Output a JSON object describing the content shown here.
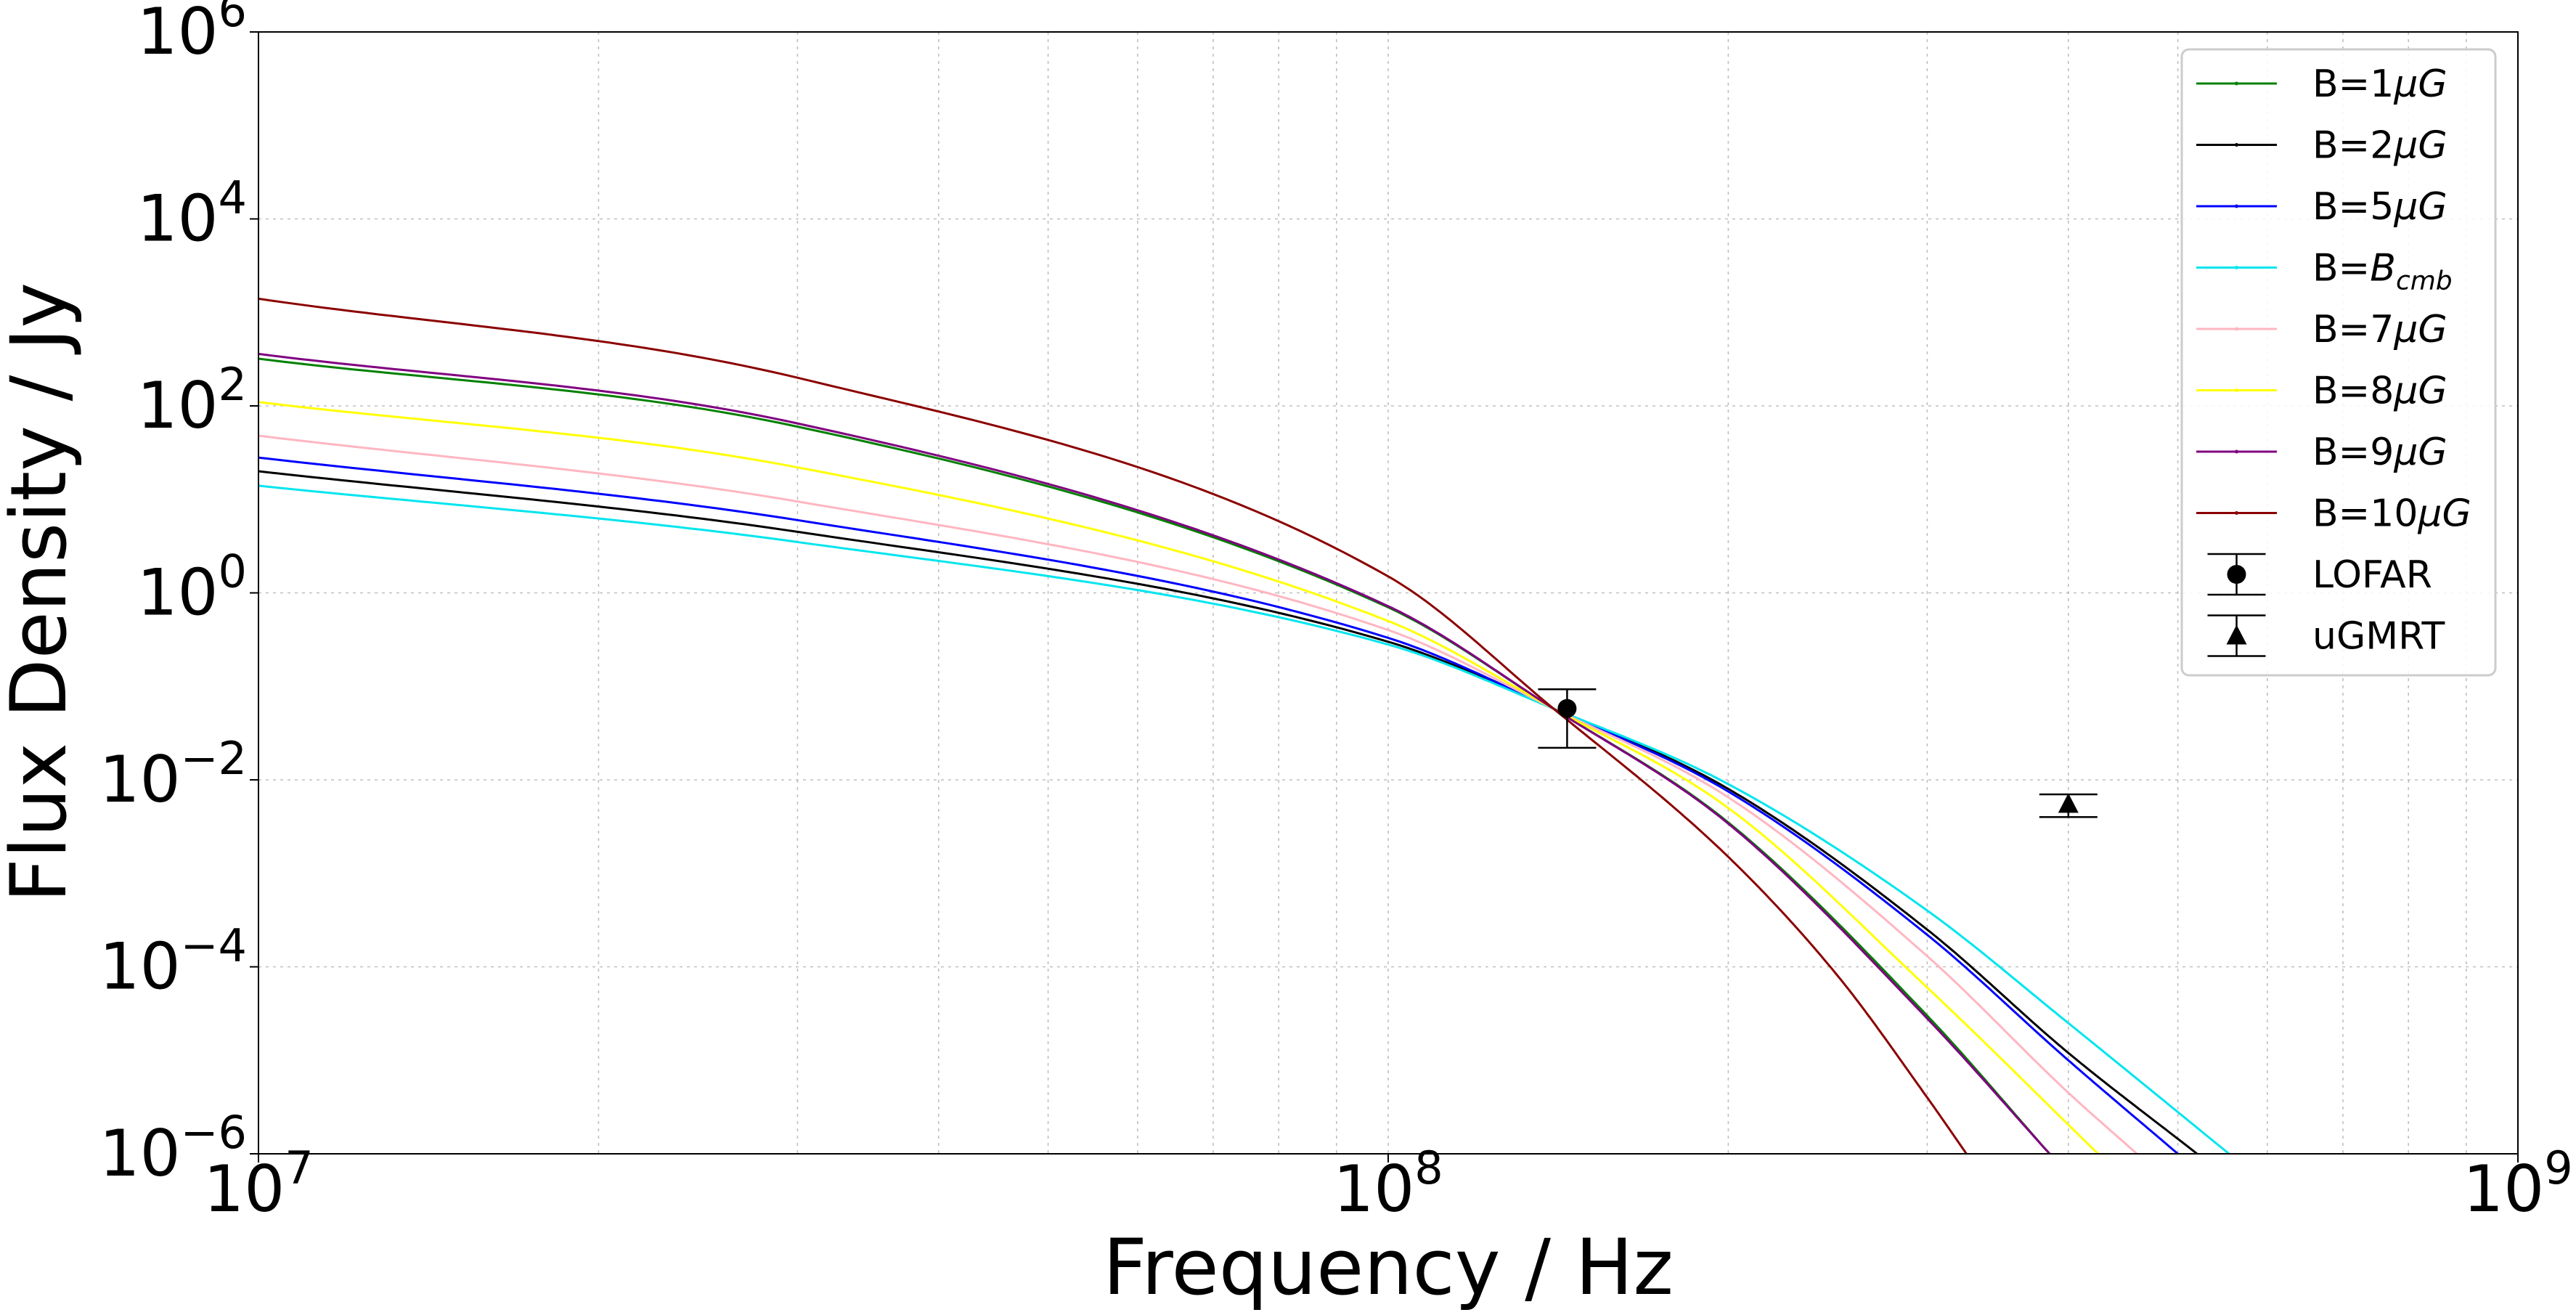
{
  "chart_data": {
    "type": "line",
    "xlabel": "Frequency / Hz",
    "ylabel": "Flux Density / Jy",
    "x_scale": "log",
    "y_scale": "log",
    "xlim": [
      10000000,
      1000000000
    ],
    "ylim": [
      1e-06,
      1000000
    ],
    "grid": true,
    "legend_position": "top-right",
    "x_ticks": [
      {
        "base": "10",
        "exp": "7",
        "value": 10000000
      },
      {
        "base": "10",
        "exp": "8",
        "value": 100000000
      },
      {
        "base": "10",
        "exp": "9",
        "value": 1000000000
      }
    ],
    "y_ticks": [
      {
        "base": "10",
        "exp": "6",
        "value": 1000000
      },
      {
        "base": "10",
        "exp": "4",
        "value": 10000
      },
      {
        "base": "10",
        "exp": "2",
        "value": 100
      },
      {
        "base": "10",
        "exp": "0",
        "value": 1
      },
      {
        "base": "10",
        "exp": "−2",
        "value": 0.01
      },
      {
        "base": "10",
        "exp": "−4",
        "value": 0.0001
      },
      {
        "base": "10",
        "exp": "−6",
        "value": 1e-06
      }
    ],
    "series": [
      {
        "name": "B=1μG",
        "label_prefix": "B=1",
        "label_unit": "μG",
        "label_sub": "",
        "color": "#008000",
        "x": [
          10000000,
          30000000,
          100000000,
          140000000,
          200000000,
          300000000,
          385000000
        ],
        "y": [
          320,
          60,
          0.7,
          0.058,
          0.0035,
          3e-05,
          1e-06
        ]
      },
      {
        "name": "B=2μG",
        "label_prefix": "B=2",
        "label_unit": "μG",
        "label_sub": "",
        "color": "#000000",
        "x": [
          10000000,
          30000000,
          100000000,
          140000000,
          200000000,
          300000000,
          400000000,
          520000000
        ],
        "y": [
          20,
          4.5,
          0.3,
          0.058,
          0.008,
          0.00025,
          1.2e-05,
          1e-06
        ]
      },
      {
        "name": "B=5μG",
        "label_prefix": "B=5",
        "label_unit": "μG",
        "label_sub": "",
        "color": "#0000ff",
        "x": [
          10000000,
          30000000,
          100000000,
          140000000,
          200000000,
          300000000,
          400000000,
          500000000
        ],
        "y": [
          28,
          6,
          0.33,
          0.058,
          0.0075,
          0.00022,
          1e-05,
          1e-06
        ]
      },
      {
        "name": "B=B_cmb",
        "label_prefix": "B=",
        "label_unit": "B",
        "label_sub": "cmb",
        "color": "#00e5ee",
        "x": [
          10000000,
          30000000,
          100000000,
          140000000,
          200000000,
          300000000,
          400000000,
          555000000
        ],
        "y": [
          14,
          3.5,
          0.28,
          0.058,
          0.009,
          0.0004,
          2.5e-05,
          1e-06
        ]
      },
      {
        "name": "B=7μG",
        "label_prefix": "B=7",
        "label_unit": "μG",
        "label_sub": "",
        "color": "#ffb6c1",
        "x": [
          10000000,
          30000000,
          100000000,
          140000000,
          200000000,
          300000000,
          400000000,
          460000000
        ],
        "y": [
          48,
          9.5,
          0.4,
          0.058,
          0.0065,
          0.00013,
          4.5e-06,
          1e-06
        ]
      },
      {
        "name": "B=8μG",
        "label_prefix": "B=8",
        "label_unit": "μG",
        "label_sub": "",
        "color": "#ffff00",
        "x": [
          10000000,
          30000000,
          100000000,
          140000000,
          200000000,
          300000000,
          425000000
        ],
        "y": [
          110,
          22,
          0.5,
          0.058,
          0.005,
          6e-05,
          1e-06
        ]
      },
      {
        "name": "B=9μG",
        "label_prefix": "B=9",
        "label_unit": "μG",
        "label_sub": "",
        "color": "#800080",
        "x": [
          10000000,
          30000000,
          100000000,
          140000000,
          200000000,
          300000000,
          385000000
        ],
        "y": [
          360,
          65,
          0.72,
          0.058,
          0.0034,
          2.8e-05,
          1e-06
        ]
      },
      {
        "name": "B=10μG",
        "label_prefix": "B=10",
        "label_unit": "μG",
        "label_sub": "",
        "color": "#8b0000",
        "x": [
          10000000,
          30000000,
          100000000,
          140000000,
          200000000,
          250000000,
          300000000,
          325000000
        ],
        "y": [
          1400,
          200,
          1.5,
          0.058,
          0.0015,
          8e-05,
          4e-06,
          1e-06
        ]
      }
    ],
    "points": [
      {
        "name": "LOFAR",
        "marker": "circle",
        "x": 144000000,
        "y": 0.058,
        "y_lower": 0.022,
        "y_upper": 0.093
      },
      {
        "name": "uGMRT",
        "marker": "triangle",
        "x": 400000000,
        "y": 0.0055,
        "y_lower": 0.004,
        "y_upper": 0.007
      }
    ]
  }
}
